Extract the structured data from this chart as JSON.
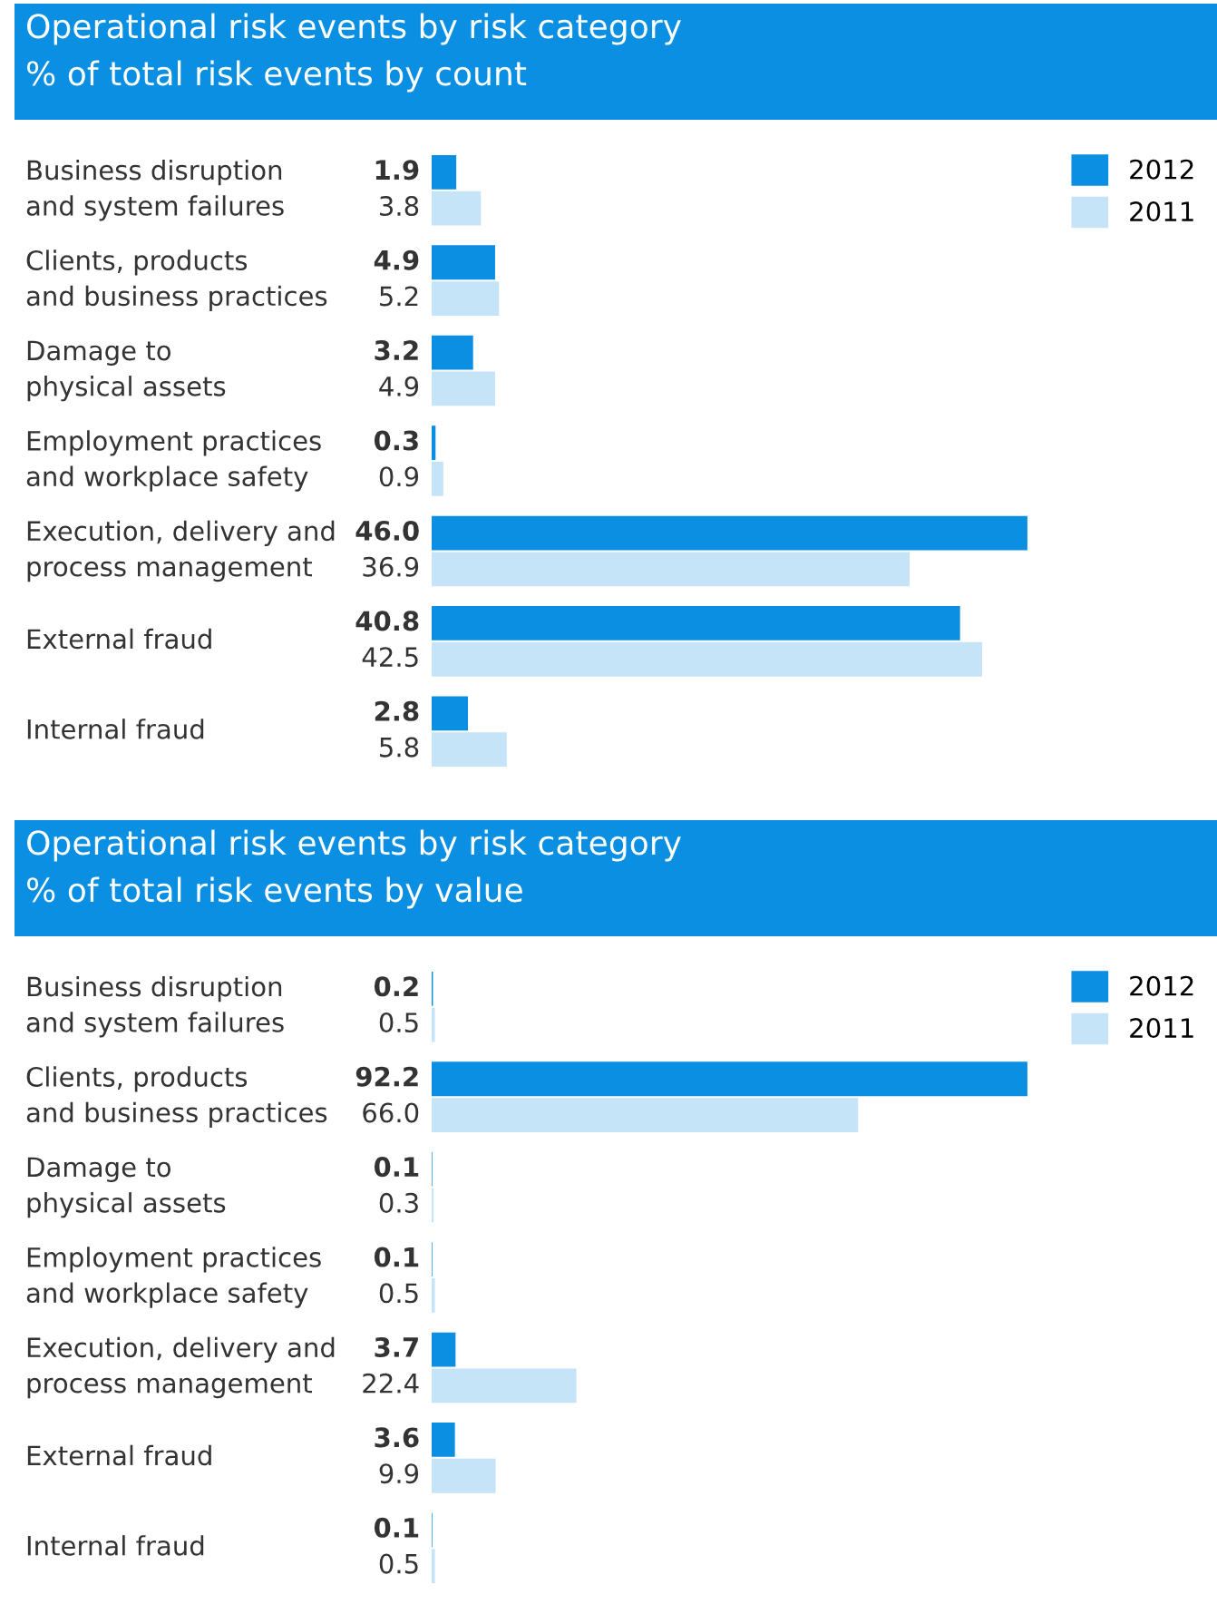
{
  "chart_data": [
    {
      "type": "bar",
      "orientation": "horizontal",
      "title": "Operational risk events by risk category",
      "subtitle": "% of total risk events by count",
      "categories": [
        "Business disruption\nand system failures",
        "Clients, products\nand business practices",
        "Damage to\nphysical assets",
        "Employment practices\nand workplace safety",
        "Execution, delivery and\nprocess management",
        "External fraud",
        "Internal fraud"
      ],
      "series": [
        {
          "name": "2012",
          "color": "#0a8fe3",
          "values": [
            1.9,
            4.9,
            3.2,
            0.3,
            46.0,
            40.8,
            2.8
          ],
          "value_labels": [
            "1.9",
            "4.9",
            "3.2",
            "0.3",
            "46.0",
            "40.8",
            "2.8"
          ]
        },
        {
          "name": "2011",
          "color": "#c6e4f8",
          "values": [
            3.8,
            5.2,
            4.9,
            0.9,
            36.9,
            42.5,
            5.8
          ],
          "value_labels": [
            "3.8",
            "5.2",
            "4.9",
            "0.9",
            "36.9",
            "42.5",
            "5.8"
          ]
        }
      ],
      "legend": "top right"
    },
    {
      "type": "bar",
      "orientation": "horizontal",
      "title": "Operational risk events by risk category",
      "subtitle": "% of total risk events by value",
      "categories": [
        "Business disruption\nand system failures",
        "Clients, products\nand business practices",
        "Damage to\nphysical assets",
        "Employment practices\nand workplace safety",
        "Execution, delivery and\nprocess management",
        "External fraud",
        "Internal fraud"
      ],
      "series": [
        {
          "name": "2012",
          "color": "#0a8fe3",
          "values": [
            0.2,
            92.2,
            0.1,
            0.1,
            3.7,
            3.6,
            0.1
          ],
          "value_labels": [
            "0.2",
            "92.2",
            "0.1",
            "0.1",
            "3.7",
            "3.6",
            "0.1"
          ]
        },
        {
          "name": "2011",
          "color": "#c6e4f8",
          "values": [
            0.5,
            66.0,
            0.3,
            0.5,
            22.4,
            9.9,
            0.5
          ],
          "value_labels": [
            "0.5",
            "66.0",
            "0.3",
            "0.5",
            "22.4",
            "9.9",
            "0.5"
          ]
        }
      ],
      "legend": "top right"
    }
  ]
}
